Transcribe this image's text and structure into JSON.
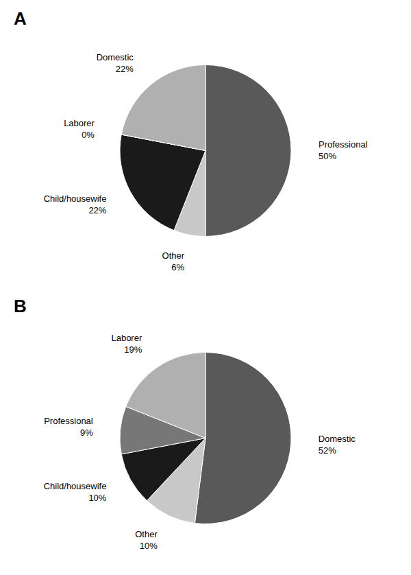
{
  "chart_data": [
    {
      "type": "pie",
      "title": "A",
      "categories": [
        "Professional",
        "Other",
        "Child/housewife",
        "Laborer",
        "Domestic"
      ],
      "values": [
        50,
        6,
        22,
        0,
        22
      ],
      "value_labels": [
        "50%",
        "6%",
        "22%",
        "0%",
        "22%"
      ],
      "colors": [
        "#595959",
        "#c8c8c8",
        "#1a1a1a",
        "#b0b0b0",
        "#b0b0b0"
      ],
      "data_labels": true
    },
    {
      "type": "pie",
      "title": "B",
      "categories": [
        "Domestic",
        "Other",
        "Child/housewife",
        "Professional",
        "Laborer"
      ],
      "values": [
        52,
        10,
        10,
        9,
        19
      ],
      "value_labels": [
        "52%",
        "10%",
        "10%",
        "9%",
        "19%"
      ],
      "colors": [
        "#595959",
        "#c8c8c8",
        "#1a1a1a",
        "#777777",
        "#b0b0b0"
      ],
      "data_labels": true
    }
  ]
}
